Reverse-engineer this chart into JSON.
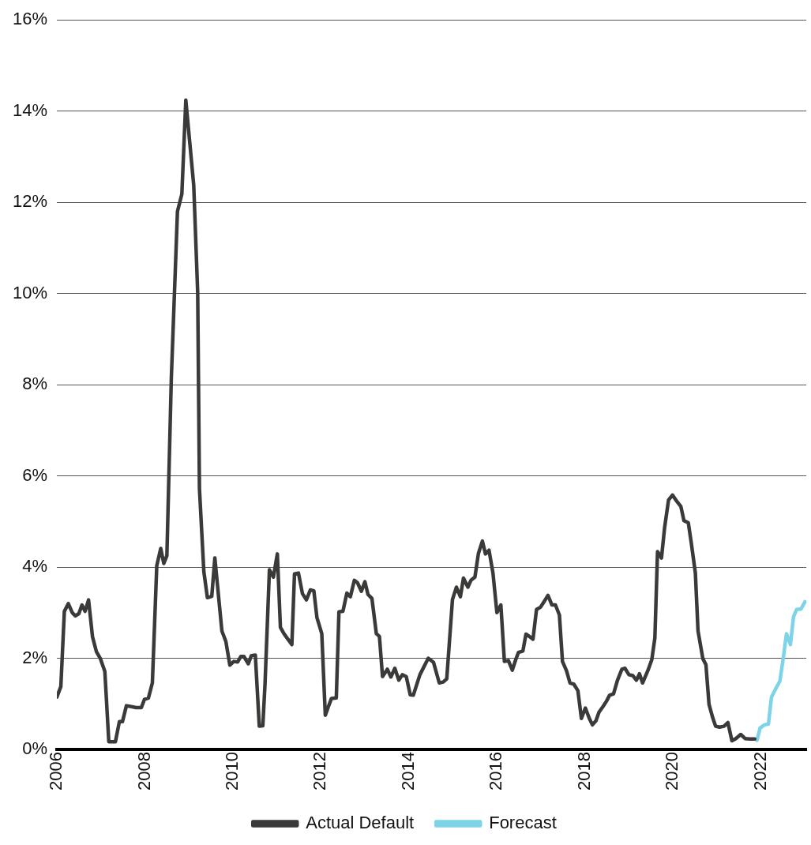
{
  "chart_data": {
    "type": "line",
    "xlim": [
      2006,
      2023.03
    ],
    "xticks": [
      2006,
      2008,
      2010,
      2012,
      2014,
      2016,
      2018,
      2020,
      2022
    ],
    "ylim": [
      0,
      16
    ],
    "yticks": [
      {
        "value": 0,
        "label": "0%"
      },
      {
        "value": 2,
        "label": "2%"
      },
      {
        "value": 4,
        "label": "4%"
      },
      {
        "value": 6,
        "label": "6%"
      },
      {
        "value": 8,
        "label": "8%"
      },
      {
        "value": 10,
        "label": "10%"
      },
      {
        "value": 12,
        "label": "12%"
      },
      {
        "value": 14,
        "label": "14%"
      },
      {
        "value": 16,
        "label": "16%"
      }
    ],
    "grid": "y",
    "legend": "bottom",
    "marker": "none",
    "line_style": "solid",
    "series": [
      {
        "name": "Actual Default",
        "color": "#3a3b39",
        "x": [
          2006.0,
          2006.09,
          2006.17,
          2006.26,
          2006.35,
          2006.42,
          2006.5,
          2006.57,
          2006.64,
          2006.72,
          2006.81,
          2006.9,
          2006.99,
          2007.09,
          2007.18,
          2007.33,
          2007.42,
          2007.49,
          2007.58,
          2007.69,
          2007.8,
          2007.92,
          2007.99,
          2008.08,
          2008.17,
          2008.27,
          2008.36,
          2008.43,
          2008.5,
          2008.6,
          2008.74,
          2008.84,
          2008.93,
          2009.11,
          2009.2,
          2009.24,
          2009.34,
          2009.42,
          2009.52,
          2009.59,
          2009.75,
          2009.84,
          2009.93,
          2010.02,
          2010.11,
          2010.18,
          2010.25,
          2010.35,
          2010.42,
          2010.51,
          2010.6,
          2010.68,
          2010.73,
          2010.83,
          2010.92,
          2011.01,
          2011.08,
          2011.16,
          2011.25,
          2011.34,
          2011.4,
          2011.49,
          2011.58,
          2011.67,
          2011.76,
          2011.84,
          2011.91,
          2012.02,
          2012.1,
          2012.17,
          2012.24,
          2012.35,
          2012.41,
          2012.5,
          2012.59,
          2012.67,
          2012.76,
          2012.83,
          2012.92,
          2013.0,
          2013.07,
          2013.16,
          2013.26,
          2013.33,
          2013.4,
          2013.51,
          2013.59,
          2013.68,
          2013.77,
          2013.85,
          2013.94,
          2014.03,
          2014.1,
          2014.25,
          2014.44,
          2014.56,
          2014.69,
          2014.78,
          2014.86,
          2014.99,
          2015.08,
          2015.17,
          2015.24,
          2015.34,
          2015.41,
          2015.5,
          2015.58,
          2015.67,
          2015.74,
          2015.82,
          2015.91,
          2016.0,
          2016.09,
          2016.17,
          2016.26,
          2016.35,
          2016.42,
          2016.49,
          2016.59,
          2016.66,
          2016.75,
          2016.82,
          2016.9,
          2016.99,
          2017.07,
          2017.16,
          2017.25,
          2017.33,
          2017.42,
          2017.49,
          2017.58,
          2017.66,
          2017.75,
          2017.84,
          2017.92,
          2018.01,
          2018.1,
          2018.17,
          2018.25,
          2018.32,
          2018.41,
          2018.49,
          2018.56,
          2018.65,
          2018.74,
          2018.84,
          2018.91,
          2019.0,
          2019.09,
          2019.17,
          2019.24,
          2019.31,
          2019.43,
          2019.52,
          2019.59,
          2019.65,
          2019.74,
          2019.81,
          2019.9,
          2019.99,
          2020.09,
          2020.18,
          2020.25,
          2020.35,
          2020.42,
          2020.51,
          2020.57,
          2020.68,
          2020.75,
          2020.82,
          2020.9,
          2020.97,
          2021.06,
          2021.16,
          2021.25,
          2021.34,
          2021.43,
          2021.54,
          2021.64,
          2021.75,
          2021.86
        ],
        "values": [
          1.15,
          1.38,
          3.03,
          3.2,
          3.0,
          2.93,
          2.98,
          3.17,
          3.03,
          3.28,
          2.47,
          2.14,
          1.99,
          1.71,
          0.17,
          0.17,
          0.61,
          0.61,
          0.96,
          0.94,
          0.92,
          0.92,
          1.1,
          1.13,
          1.46,
          4.03,
          4.41,
          4.08,
          4.25,
          8.12,
          11.8,
          12.18,
          14.24,
          12.37,
          10.02,
          5.72,
          3.9,
          3.33,
          3.36,
          4.2,
          2.6,
          2.37,
          1.85,
          1.93,
          1.92,
          2.04,
          2.04,
          1.88,
          2.06,
          2.07,
          0.51,
          0.52,
          1.43,
          3.94,
          3.78,
          4.29,
          2.68,
          2.54,
          2.42,
          2.3,
          3.85,
          3.87,
          3.42,
          3.28,
          3.5,
          3.48,
          2.89,
          2.54,
          0.75,
          0.94,
          1.12,
          1.13,
          3.02,
          3.03,
          3.43,
          3.35,
          3.71,
          3.66,
          3.47,
          3.68,
          3.4,
          3.31,
          2.54,
          2.48,
          1.6,
          1.76,
          1.59,
          1.78,
          1.52,
          1.64,
          1.6,
          1.2,
          1.19,
          1.64,
          2.0,
          1.91,
          1.46,
          1.48,
          1.55,
          3.29,
          3.56,
          3.35,
          3.76,
          3.56,
          3.71,
          3.78,
          4.3,
          4.57,
          4.29,
          4.37,
          3.87,
          3.0,
          3.17,
          1.93,
          1.95,
          1.74,
          1.95,
          2.13,
          2.16,
          2.53,
          2.47,
          2.42,
          3.07,
          3.12,
          3.24,
          3.38,
          3.17,
          3.17,
          2.95,
          1.93,
          1.73,
          1.46,
          1.43,
          1.29,
          0.68,
          0.91,
          0.68,
          0.54,
          0.63,
          0.82,
          0.94,
          1.06,
          1.19,
          1.22,
          1.52,
          1.76,
          1.78,
          1.64,
          1.62,
          1.52,
          1.66,
          1.46,
          1.73,
          1.97,
          2.45,
          4.34,
          4.2,
          4.86,
          5.47,
          5.58,
          5.44,
          5.33,
          5.02,
          4.97,
          4.51,
          3.87,
          2.6,
          1.99,
          1.86,
          0.99,
          0.71,
          0.51,
          0.49,
          0.51,
          0.59,
          0.19,
          0.24,
          0.33,
          0.24,
          0.23,
          0.23
        ]
      },
      {
        "name": "Forecast",
        "color": "#7dd3e8",
        "x": [
          2021.91,
          2021.98,
          2022.08,
          2022.17,
          2022.24,
          2022.33,
          2022.43,
          2022.5,
          2022.58,
          2022.67,
          2022.74,
          2022.81,
          2022.91,
          2023.0
        ],
        "values": [
          0.2,
          0.47,
          0.54,
          0.56,
          1.15,
          1.32,
          1.5,
          1.95,
          2.54,
          2.3,
          2.91,
          3.07,
          3.08,
          3.24
        ]
      }
    ]
  }
}
